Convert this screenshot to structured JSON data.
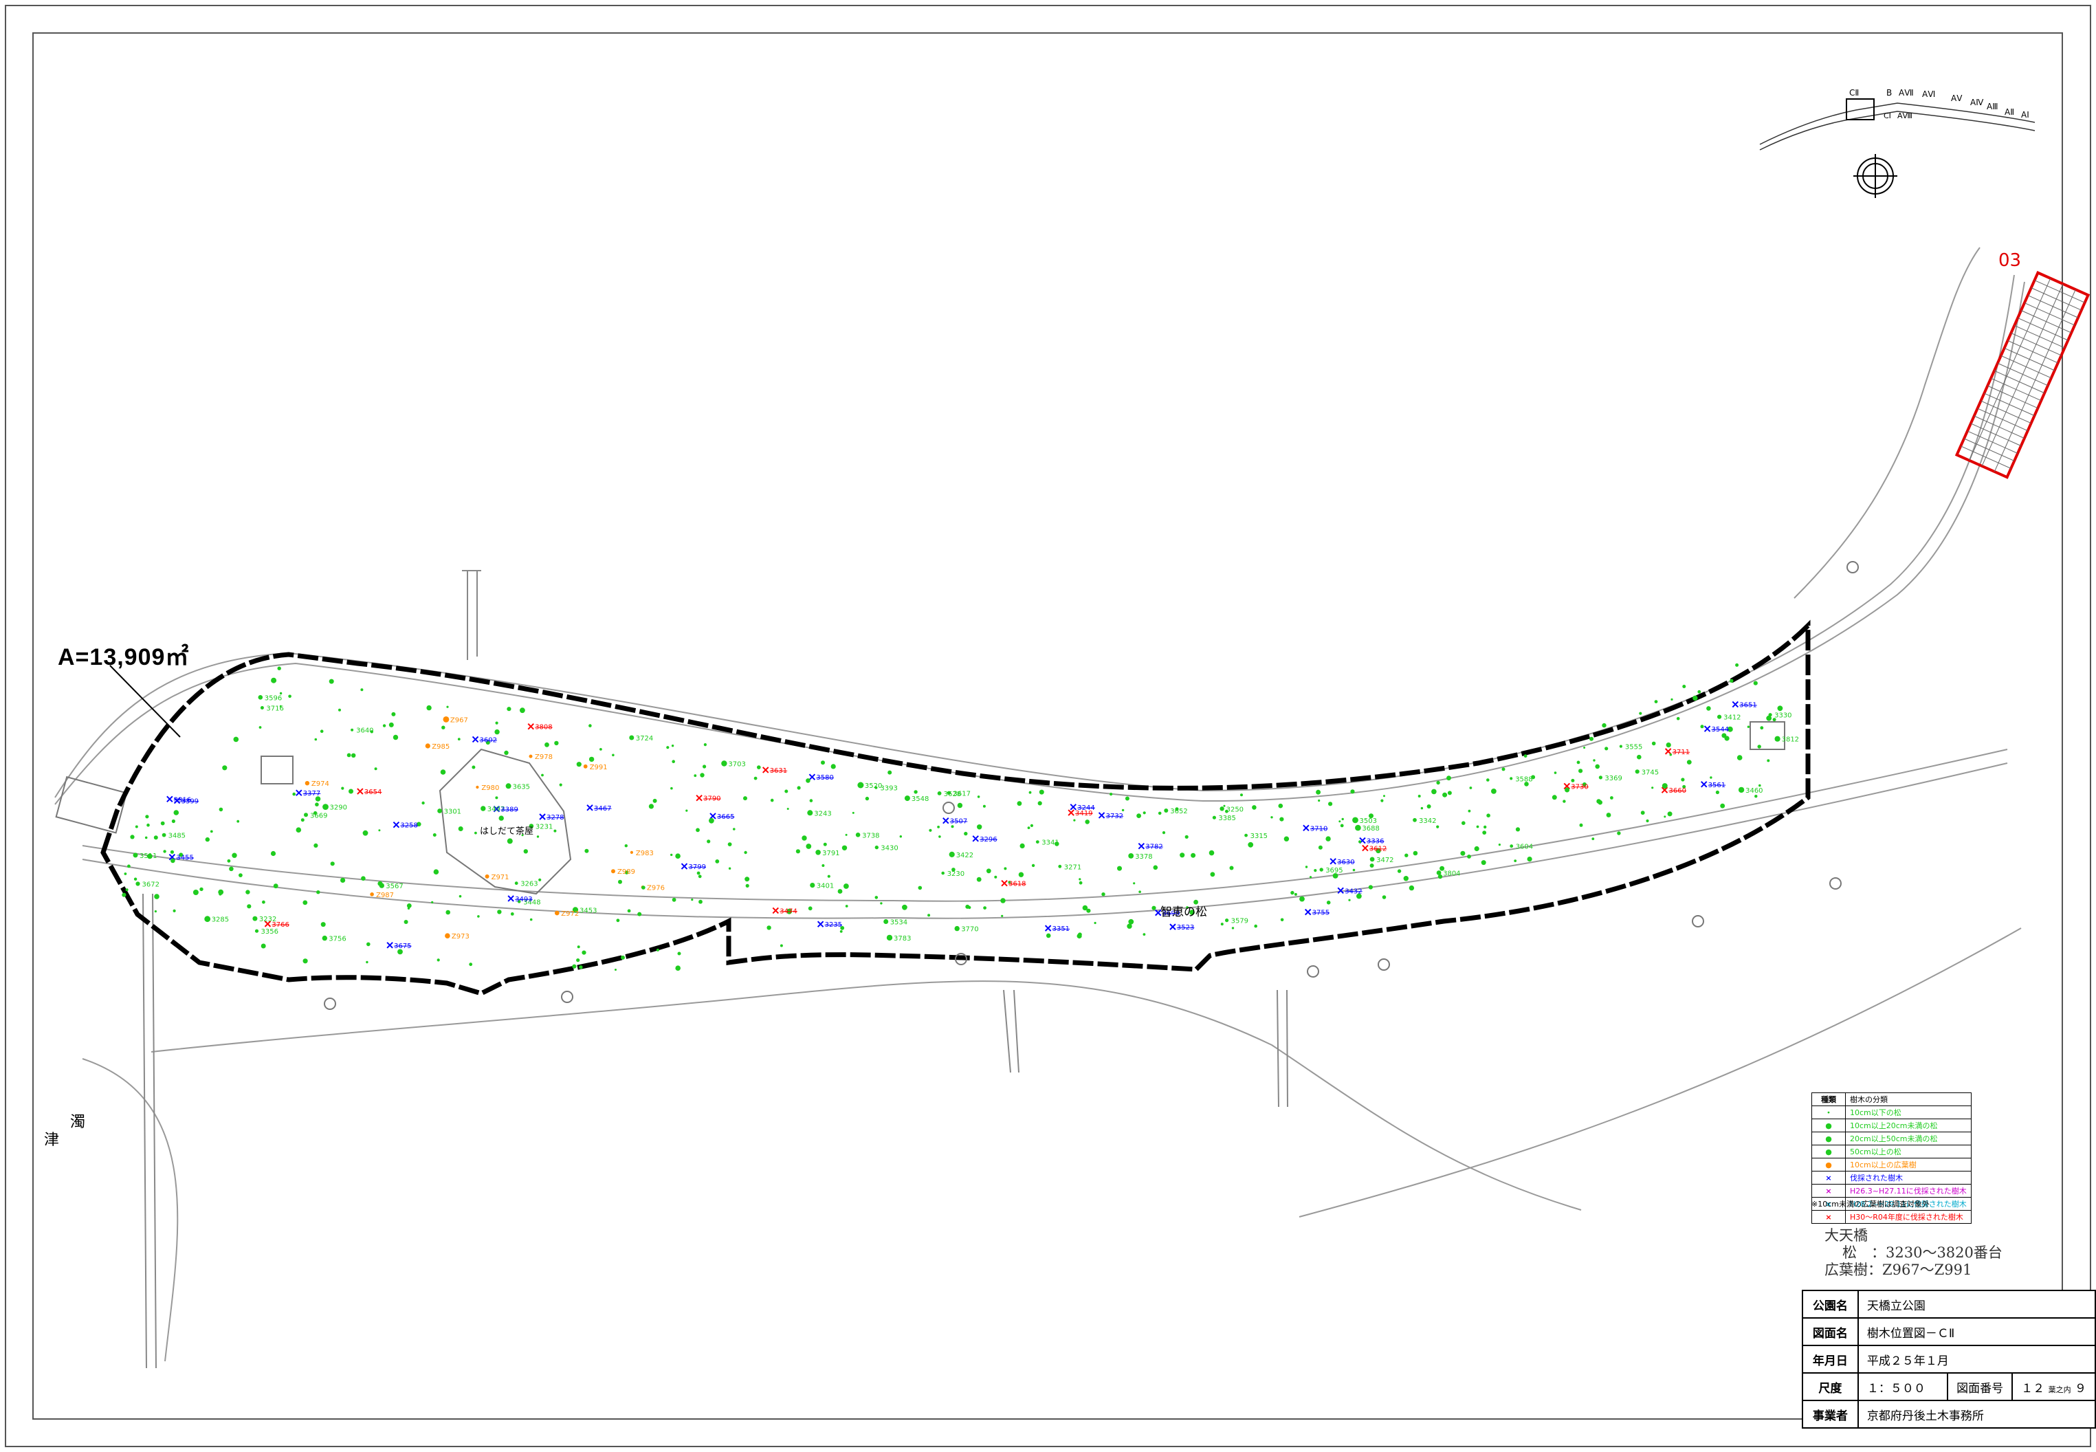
{
  "area_label": "A=13,909㎡",
  "sheet_ref": "03",
  "landmarks": {
    "pine_name": "智恵の松",
    "teahouse": "はしだて茶屋"
  },
  "sea_characters": [
    "津",
    "濁"
  ],
  "info": {
    "bridge": "大天橋",
    "pine_range": "松　：3230〜3820番台",
    "broadleaf_range": "広葉樹：Z967〜Z991"
  },
  "legend": {
    "header_kind": "種類",
    "header_class": "樹木の分類",
    "rows": [
      {
        "symbol": "・",
        "color": "#1fcc1f",
        "label": "10cm以下の松"
      },
      {
        "symbol": "●",
        "color": "#1fcc1f",
        "label": "10cm以上20cm未満の松"
      },
      {
        "symbol": "●",
        "color": "#1fcc1f",
        "label": "20cm以上50cm未満の松"
      },
      {
        "symbol": "●",
        "color": "#1fcc1f",
        "label": "50cm以上の松"
      },
      {
        "symbol": "●",
        "color": "#ff8c00",
        "label": "10cm以上の広葉樹"
      },
      {
        "symbol": "×",
        "color": "#0000ff",
        "label": "伐採された樹木"
      },
      {
        "symbol": "×",
        "color": "#cc00cc",
        "label": "H26.3~H27.11に伐採された樹木"
      },
      {
        "symbol": "×",
        "color": "#00aacc",
        "label": "H28.2~H29.11に伐採された樹木"
      },
      {
        "symbol": "×",
        "color": "#ff0000",
        "label": "H30〜R04年度に伐採された樹木"
      }
    ],
    "note": "※10cm未満の広葉樹は調査対象外"
  },
  "title_block": {
    "park_key": "公園名",
    "park_value": "天橋立公園",
    "drawing_key": "図面名",
    "drawing_value": "樹木位置図－ＣⅡ",
    "date_key": "年月日",
    "date_value": "平成２５年１月",
    "scale_key": "尺度",
    "scale_value": "１：５００",
    "number_key": "図面番号",
    "number_value": "１２",
    "number_sub": "葉之内",
    "number_total": "９",
    "office_key": "事業者",
    "office_value": "京都府丹後土木事務所"
  },
  "keymap_labels": [
    "CⅡ",
    "B",
    "AⅦ",
    "AⅥ",
    "AⅤ",
    "AⅣ",
    "AⅢ",
    "AⅡ",
    "AⅠ",
    "CⅠ",
    "AⅧ"
  ],
  "colors": {
    "pine": "#1fcc1f",
    "broadleaf": "#ff8c00",
    "cut": "#0000ff",
    "cut_recent": "#ff0000",
    "boundary": "#000000",
    "road": "#6a6a6a",
    "sheet_frame": "#e00000"
  },
  "tree_numbers": {
    "pine": [
      "3230",
      "3231",
      "3232",
      "3243",
      "3250",
      "3263",
      "3271",
      "3285",
      "3290",
      "3301",
      "3315",
      "3330",
      "3341",
      "3342",
      "3356",
      "3369",
      "3378",
      "3385",
      "3393",
      "3401",
      "3412",
      "3422",
      "3430",
      "3448",
      "3453",
      "3460",
      "3472",
      "3485",
      "3497",
      "3503",
      "3511",
      "3520",
      "3534",
      "3548",
      "3555",
      "3567",
      "3579",
      "3588",
      "3596",
      "3604",
      "3617",
      "3628",
      "3635",
      "3640",
      "3652",
      "3669",
      "3672",
      "3688",
      "3695",
      "3703",
      "3716",
      "3724",
      "3738",
      "3745",
      "3756",
      "3770",
      "3783",
      "3791",
      "3804",
      "3812"
    ],
    "broadleaf": [
      "Z967",
      "Z971",
      "Z972",
      "Z973",
      "Z974",
      "Z976",
      "Z978",
      "Z980",
      "Z983",
      "Z985",
      "Z987",
      "Z989",
      "Z991"
    ],
    "cut": [
      "3235",
      "3244",
      "3258",
      "3278",
      "3296",
      "3316",
      "3336",
      "3351",
      "3377",
      "3389",
      "3399",
      "3432",
      "3455",
      "3467",
      "3493",
      "3507",
      "3523",
      "3544",
      "3561",
      "3580",
      "3602",
      "3630",
      "3651",
      "3665",
      "3675",
      "3699",
      "3710",
      "3732",
      "3755",
      "3782",
      "3799"
    ],
    "cut_recent": [
      "3419",
      "3474",
      "3612",
      "3618",
      "3631",
      "3654",
      "3660",
      "3711",
      "3730",
      "3766",
      "3790",
      "3808"
    ]
  }
}
